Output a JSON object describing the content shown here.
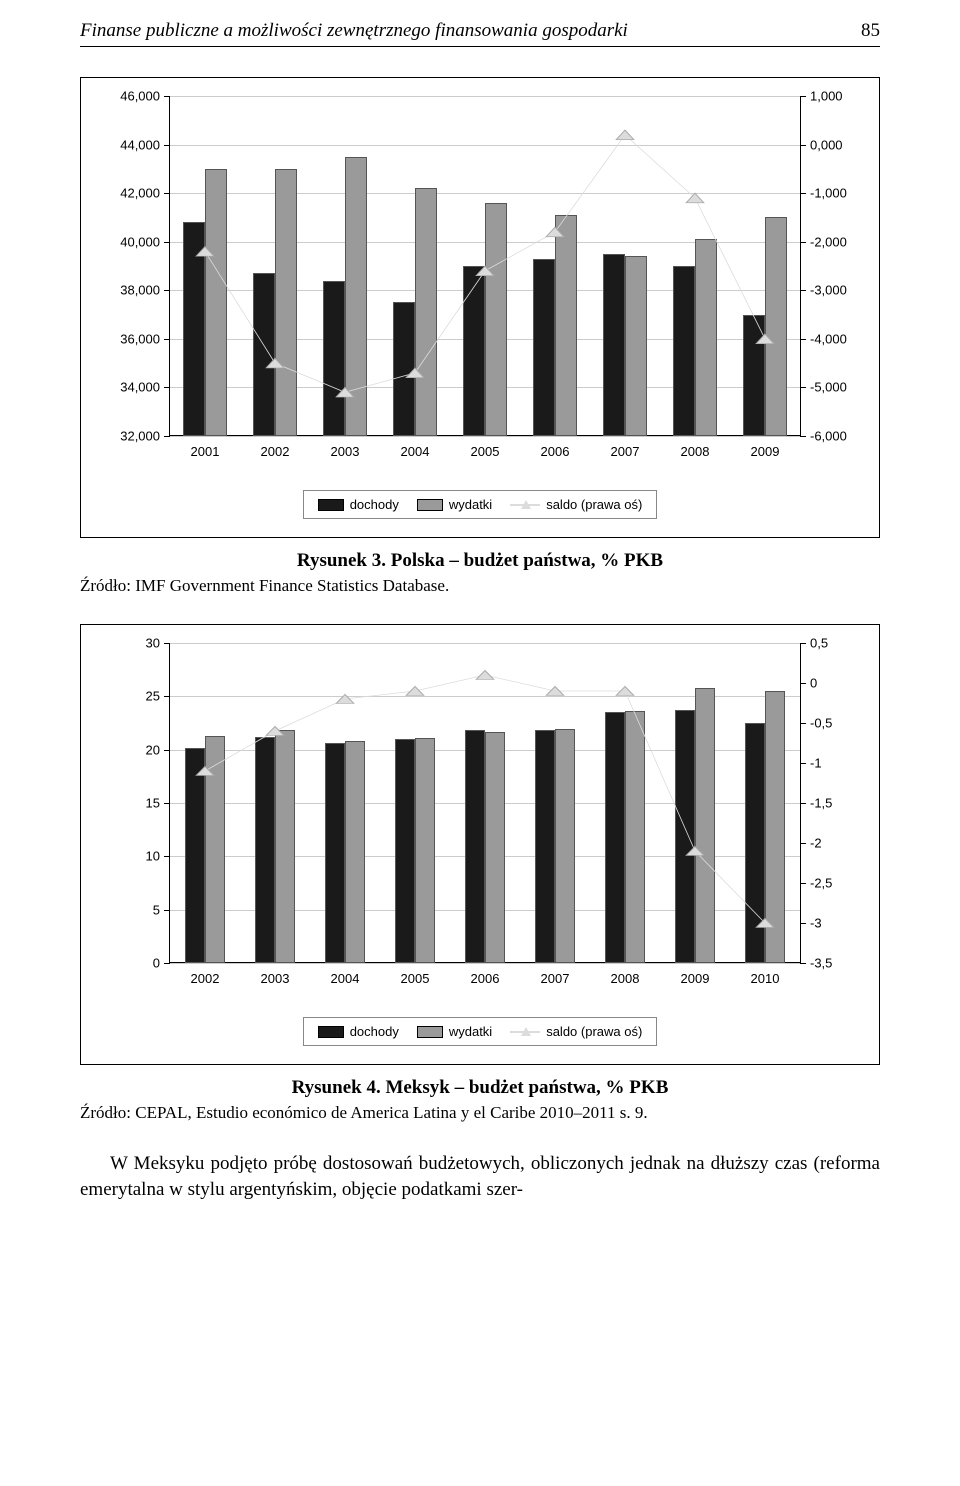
{
  "header": {
    "title": "Finanse publiczne a możliwości zewnętrznego finansowania gospodarki",
    "page": "85"
  },
  "chart1": {
    "type": "bar+line",
    "categories": [
      "2001",
      "2002",
      "2003",
      "2004",
      "2005",
      "2006",
      "2007",
      "2008",
      "2009"
    ],
    "dochody": [
      40.8,
      38.7,
      38.4,
      37.5,
      39.0,
      39.3,
      39.5,
      39.0,
      37.0
    ],
    "wydatki": [
      43.0,
      43.0,
      43.5,
      42.2,
      41.6,
      41.1,
      39.4,
      40.1,
      41.0
    ],
    "saldo": [
      -2.2,
      -4.5,
      -5.1,
      -4.7,
      -2.6,
      -1.8,
      0.2,
      -1.1,
      -4.0
    ],
    "left_axis": {
      "min": 32.0,
      "max": 46.0,
      "step": 2.0
    },
    "right_axis": {
      "min": -6.0,
      "max": 1.0,
      "step": 1.0
    },
    "left_tick_labels": [
      "32,000",
      "34,000",
      "36,000",
      "38,000",
      "40,000",
      "42,000",
      "44,000",
      "46,000"
    ],
    "right_tick_labels": [
      "-6,000",
      "-5,000",
      "-4,000",
      "-3,000",
      "-2,000",
      "-1,000",
      "0,000",
      "1,000"
    ],
    "bar_colors": {
      "dochody": "#1a1a1a",
      "wydatki": "#9a9a9a"
    },
    "line_color": "#dcdcdc",
    "marker": "triangle",
    "grid_color": "#cccccc",
    "background": "#ffffff",
    "font_family": "Arial",
    "legend": {
      "dochody": "dochody",
      "wydatki": "wydatki",
      "saldo": "saldo (prawa oś)"
    }
  },
  "caption1": {
    "label": "Rysunek 3. Polska – budżet państwa, % PKB",
    "source": "Źródło: IMF Government Finance Statistics Database."
  },
  "chart2": {
    "type": "bar+line",
    "categories": [
      "2002",
      "2003",
      "2004",
      "2005",
      "2006",
      "2007",
      "2008",
      "2009",
      "2010"
    ],
    "dochody": [
      20.2,
      21.2,
      20.6,
      21.0,
      21.8,
      21.8,
      23.5,
      23.7,
      22.5
    ],
    "wydatki": [
      21.3,
      21.8,
      20.8,
      21.1,
      21.7,
      21.9,
      23.6,
      25.8,
      25.5
    ],
    "saldo": [
      -1.1,
      -0.6,
      -0.2,
      -0.1,
      0.1,
      -0.1,
      -0.1,
      -2.1,
      -3.0
    ],
    "left_axis": {
      "min": 0,
      "max": 30,
      "step": 5
    },
    "right_axis": {
      "min": -3.5,
      "max": 0.5,
      "step": 0.5
    },
    "left_tick_labels": [
      "0",
      "5",
      "10",
      "15",
      "20",
      "25",
      "30"
    ],
    "right_tick_labels": [
      "-3,5",
      "-3",
      "-2,5",
      "-2",
      "-1,5",
      "-1",
      "-0,5",
      "0",
      "0,5"
    ],
    "bar_colors": {
      "dochody": "#1a1a1a",
      "wydatki": "#9a9a9a"
    },
    "line_color": "#dcdcdc",
    "marker": "triangle",
    "grid_color": "#cccccc",
    "background": "#ffffff",
    "font_family": "Arial",
    "legend": {
      "dochody": "dochody",
      "wydatki": "wydatki",
      "saldo": "saldo (prawa oś)"
    }
  },
  "caption2": {
    "label": "Rysunek 4. Meksyk – budżet państwa, % PKB",
    "source": "Źródło: CEPAL, Estudio económico de America Latina y el Caribe 2010–2011 s. 9."
  },
  "body": "W Meksyku podjęto próbę dostosowań budżetowych, obliczonych jednak na dłuższy czas (reforma emerytalna w stylu argentyńskim, objęcie podatkami szer-"
}
